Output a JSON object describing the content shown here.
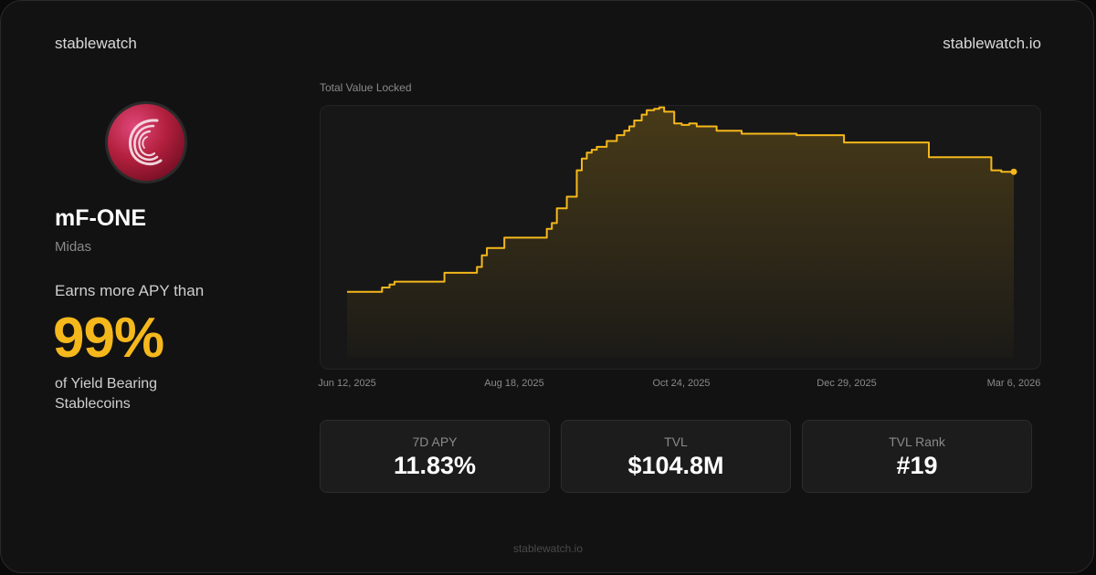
{
  "brand": {
    "name": "stablewatch",
    "domain": "stablewatch.io"
  },
  "coin": {
    "logo_icon": "midas-swirl-icon",
    "name": "mF-ONE",
    "issuer": "Midas",
    "earns_label": "Earns more APY than",
    "percentile": "99%",
    "percentile_caption": "of Yield Bearing Stablecoins"
  },
  "stats": [
    {
      "label": "7D APY",
      "value": "11.83%"
    },
    {
      "label": "TVL",
      "value": "$104.8M"
    },
    {
      "label": "TVL Rank",
      "value": "#19"
    }
  ],
  "footer": "stablewatch.io",
  "colors": {
    "accent": "#f5b81c",
    "background": "#121212"
  },
  "chart_data": {
    "type": "area",
    "title": "Total Value Locked",
    "x_tick_labels": [
      "Jun 12, 2025",
      "Aug 18, 2025",
      "Oct 24, 2025",
      "Dec 29, 2025",
      "Mar 6, 2026"
    ],
    "x_range": [
      "2025-06-12",
      "2026-03-06"
    ],
    "y_range_millions": [
      0,
      172
    ],
    "grid": false,
    "legend": "none",
    "series": [
      {
        "x": [
          "2025-06-12",
          "2025-06-26",
          "2025-06-29",
          "2025-07-01",
          "2025-07-18",
          "2025-07-21",
          "2025-07-29",
          "2025-08-03",
          "2025-08-05",
          "2025-08-07",
          "2025-08-14",
          "2025-08-28",
          "2025-08-31",
          "2025-09-02",
          "2025-09-04",
          "2025-09-08",
          "2025-09-12",
          "2025-09-14",
          "2025-09-16",
          "2025-09-18",
          "2025-09-20",
          "2025-09-24",
          "2025-09-28",
          "2025-10-01",
          "2025-10-03",
          "2025-10-05",
          "2025-10-08",
          "2025-10-10",
          "2025-10-13",
          "2025-10-15",
          "2025-10-17",
          "2025-10-21",
          "2025-10-24",
          "2025-10-27",
          "2025-10-30",
          "2025-11-07",
          "2025-11-10",
          "2025-11-17",
          "2025-11-29",
          "2025-12-09",
          "2025-12-28",
          "2026-01-25",
          "2026-01-31",
          "2026-02-14",
          "2026-02-25",
          "2026-03-01",
          "2026-03-06"
        ],
        "y": [
          45,
          48,
          50,
          52,
          52,
          58,
          58,
          62,
          70,
          75,
          82,
          82,
          88,
          92,
          102,
          110,
          128,
          136,
          140,
          142,
          144,
          148,
          152,
          155,
          158,
          162,
          166,
          169,
          170,
          171,
          168,
          160,
          159,
          160,
          158,
          155,
          155,
          153,
          153,
          152,
          147,
          147,
          137,
          137,
          128,
          127,
          127
        ]
      }
    ]
  }
}
